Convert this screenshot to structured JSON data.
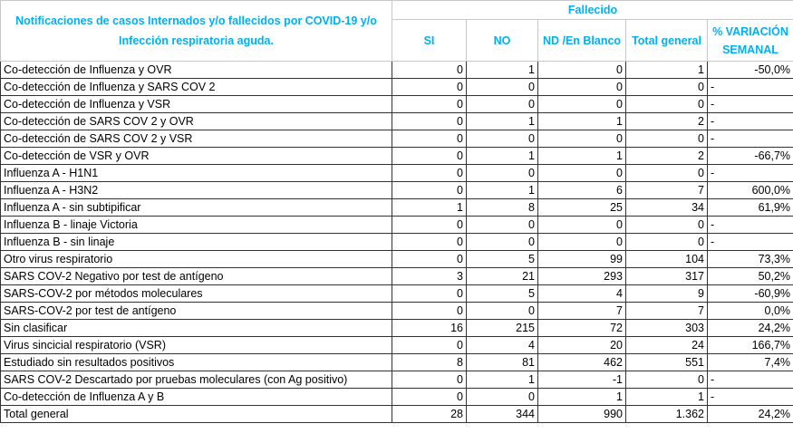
{
  "header": {
    "title": "Notificaciones de casos Internados y/o fallecidos por COVID-19 y/o Infección respiratoria aguda.",
    "group": "Fallecido",
    "columns": [
      "SI",
      "NO",
      "ND /En Blanco",
      "Total general",
      "% VARIACIÓN SEMANAL"
    ]
  },
  "table": {
    "rows": [
      [
        "Co-detección de Influenza y OVR",
        "0",
        "1",
        "0",
        "1",
        "-50,0%"
      ],
      [
        "Co-detección de Influenza y SARS COV 2",
        "0",
        "0",
        "0",
        "0",
        "-"
      ],
      [
        "Co-detección de Influenza y VSR",
        "0",
        "0",
        "0",
        "0",
        "-"
      ],
      [
        "Co-detección de SARS COV 2 y OVR",
        "0",
        "1",
        "1",
        "2",
        "-"
      ],
      [
        "Co-detección de SARS COV 2 y VSR",
        "0",
        "0",
        "0",
        "0",
        "-"
      ],
      [
        "Co-detección de VSR y OVR",
        "0",
        "1",
        "1",
        "2",
        "-66,7%"
      ],
      [
        "Influenza A - H1N1",
        "0",
        "0",
        "0",
        "0",
        "-"
      ],
      [
        "Influenza A - H3N2",
        "0",
        "1",
        "6",
        "7",
        "600,0%"
      ],
      [
        "Influenza A - sin subtipificar",
        "1",
        "8",
        "25",
        "34",
        "61,9%"
      ],
      [
        "Influenza B - linaje Victoria",
        "0",
        "0",
        "0",
        "0",
        "-"
      ],
      [
        "Influenza B - sin linaje",
        "0",
        "0",
        "0",
        "0",
        "-"
      ],
      [
        "Otro virus respiratorio",
        "0",
        "5",
        "99",
        "104",
        "73,3%"
      ],
      [
        "SARS COV-2 Negativo por test de antígeno",
        "3",
        "21",
        "293",
        "317",
        "50,2%"
      ],
      [
        "SARS-COV-2 por métodos moleculares",
        "0",
        "5",
        "4",
        "9",
        "-60,9%"
      ],
      [
        "SARS-COV-2 por test de antígeno",
        "0",
        "0",
        "7",
        "7",
        "0,0%"
      ],
      [
        "Sin clasificar",
        "16",
        "215",
        "72",
        "303",
        "24,2%"
      ],
      [
        "Virus sincicial respiratorio (VSR)",
        "0",
        "4",
        "20",
        "24",
        "166,7%"
      ],
      [
        "Estudiado sin resultados positivos",
        "8",
        "81",
        "462",
        "551",
        "7,4%"
      ],
      [
        "SARS COV-2 Descartado por pruebas moleculares (con Ag positivo)",
        "0",
        "1",
        "-1",
        "0",
        "-"
      ],
      [
        "Co-detección de Influenza A y B",
        "0",
        "0",
        "1",
        "1",
        "-"
      ],
      [
        "Total general",
        "28",
        "344",
        "990",
        "1.362",
        "24,2%"
      ]
    ]
  }
}
